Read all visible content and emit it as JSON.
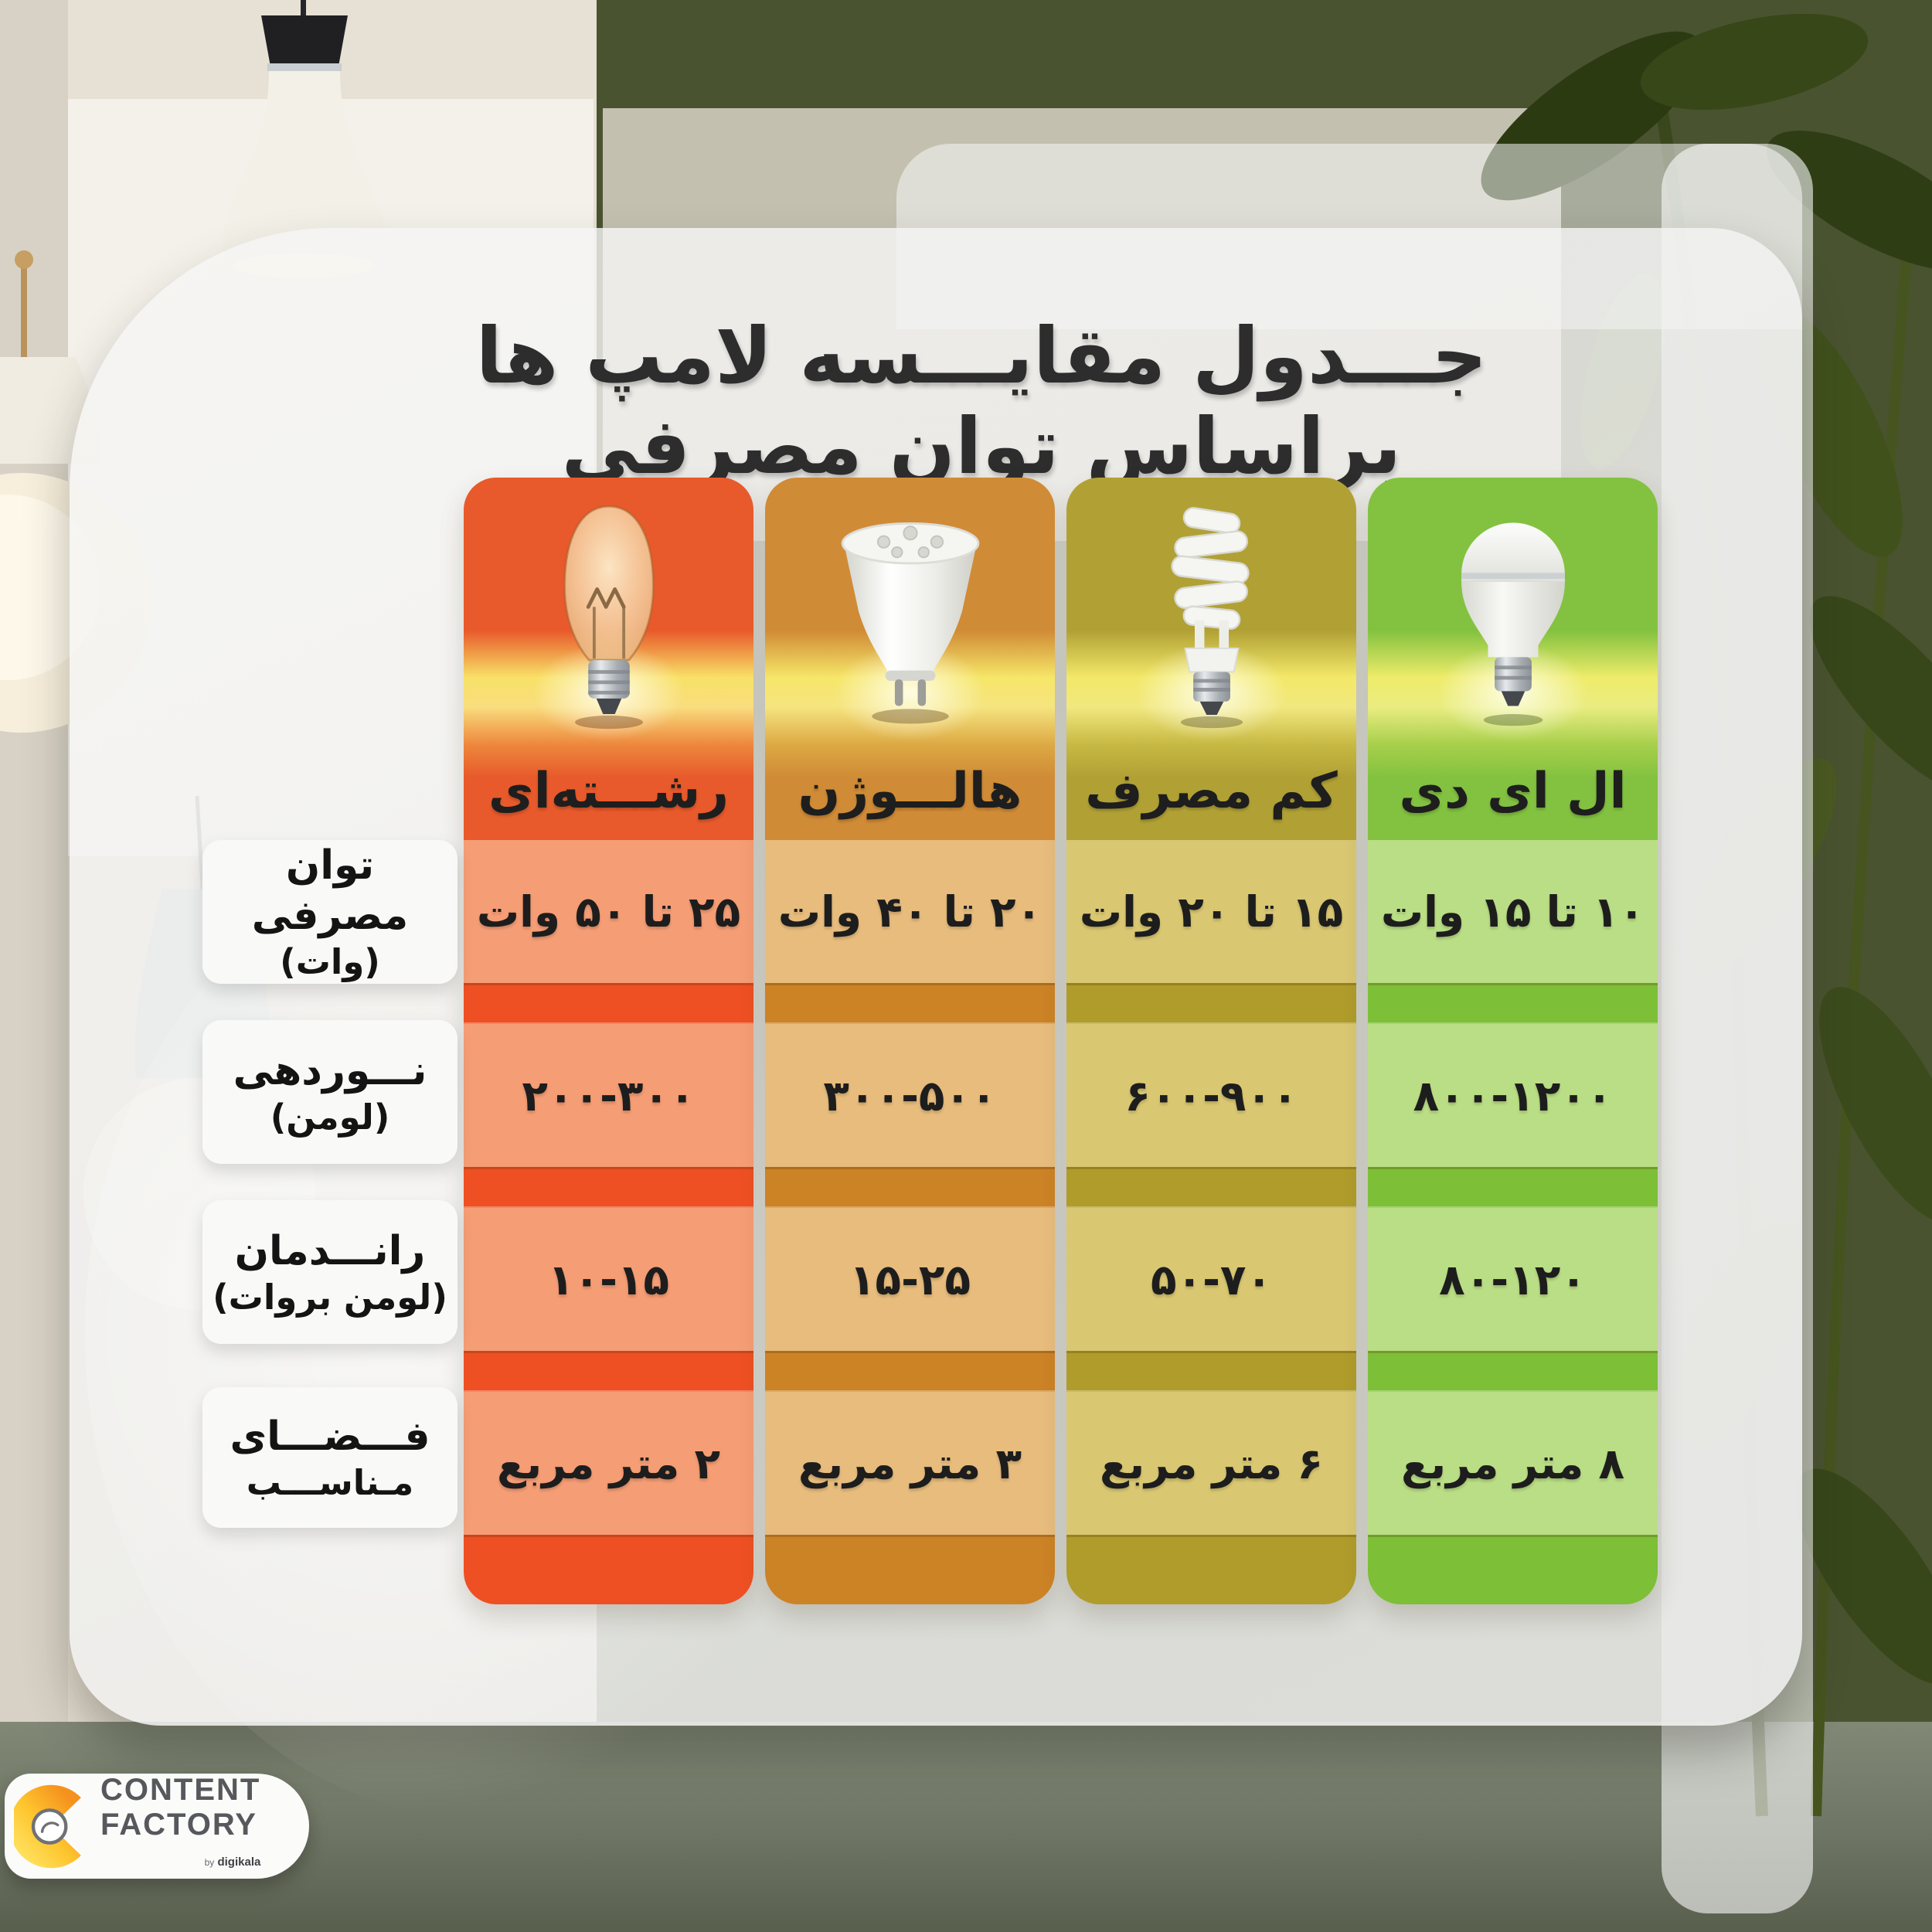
{
  "page": {
    "title": "جـــدول مقایـــسه لامپ ها براساس توان مصرفی"
  },
  "table": {
    "direction": "rtl",
    "row_headers": [
      {
        "key": "power",
        "label": "توان مصرفی",
        "unit": "(وات)"
      },
      {
        "key": "lumen",
        "label": "نـــوردهی",
        "unit": "(لومن)"
      },
      {
        "key": "efficiency",
        "label": "رانـــدمان",
        "unit": "(لومن بروات)"
      },
      {
        "key": "space",
        "label": "فـــضـــای",
        "unit": "مـناســـب"
      }
    ],
    "columns": [
      {
        "id": "incandescent",
        "label": "رشـــته‌ای",
        "icon": "incandescent-bulb-icon",
        "colors": {
          "header": "#E85A2B",
          "tint": "#F59D75",
          "band": "#EE5023"
        },
        "values": [
          "۲۵ تا ۵۰ وات",
          "۲۰۰-۳۰۰",
          "۱۰-۱۵",
          "۲ متر مربع"
        ]
      },
      {
        "id": "halogen",
        "label": "هالـــوژن",
        "icon": "halogen-bulb-icon",
        "colors": {
          "header": "#D08B36",
          "tint": "#E7BC7D",
          "band": "#CC8326"
        },
        "values": [
          "۲۰ تا ۴۰ وات",
          "۳۰۰-۵۰۰",
          "۱۵-۲۵",
          "۳ متر مربع"
        ]
      },
      {
        "id": "cfl",
        "label": "کم مصرف",
        "icon": "cfl-bulb-icon",
        "colors": {
          "header": "#B1A135",
          "tint": "#D9C772",
          "band": "#AF9C2B"
        },
        "values": [
          "۱۵ تا ۲۰ وات",
          "۶۰۰-۹۰۰",
          "۵۰-۷۰",
          "۶ متر مربع"
        ]
      },
      {
        "id": "led",
        "label": "ال ای دی",
        "icon": "led-bulb-icon",
        "colors": {
          "header": "#83C240",
          "tint": "#BADE85",
          "band": "#7DBF37"
        },
        "values": [
          "۱۰ تا ۱۵ وات",
          "۸۰۰-۱۲۰۰",
          "۸۰-۱۲۰",
          "۸ متر مربع"
        ]
      }
    ]
  },
  "chart_data": {
    "type": "table",
    "title": "جدول مقایسه لامپ ها براساس توان مصرفی",
    "columns": [
      "رشته‌ای",
      "هالوژن",
      "کم مصرف",
      "ال ای دی"
    ],
    "rows": [
      {
        "metric": "توان مصرفی (وات)",
        "values": [
          "۲۵ تا ۵۰ وات",
          "۲۰ تا ۴۰ وات",
          "۱۵ تا ۲۰ وات",
          "۱۰ تا ۱۵ وات"
        ]
      },
      {
        "metric": "نوردهی (لومن)",
        "values": [
          "۲۰۰-۳۰۰",
          "۳۰۰-۵۰۰",
          "۶۰۰-۹۰۰",
          "۸۰۰-۱۲۰۰"
        ]
      },
      {
        "metric": "راندمان (لومن بروات)",
        "values": [
          "۱۰-۱۵",
          "۱۵-۲۵",
          "۵۰-۷۰",
          "۸۰-۱۲۰"
        ]
      },
      {
        "metric": "فضای مناسب",
        "values": [
          "۲ متر مربع",
          "۳ متر مربع",
          "۶ متر مربع",
          "۸ متر مربع"
        ]
      }
    ]
  },
  "brand": {
    "icon": "content-factory-logo",
    "line1": "CONTENT",
    "line2": "FACTORY",
    "byline_prefix": "by",
    "byline_name": "digikala"
  },
  "colors": {
    "wall_green": "#4A5330",
    "cream": "#E7E0D4",
    "glass": "#F3F3F2",
    "text_dark": "#1D1D1D"
  }
}
